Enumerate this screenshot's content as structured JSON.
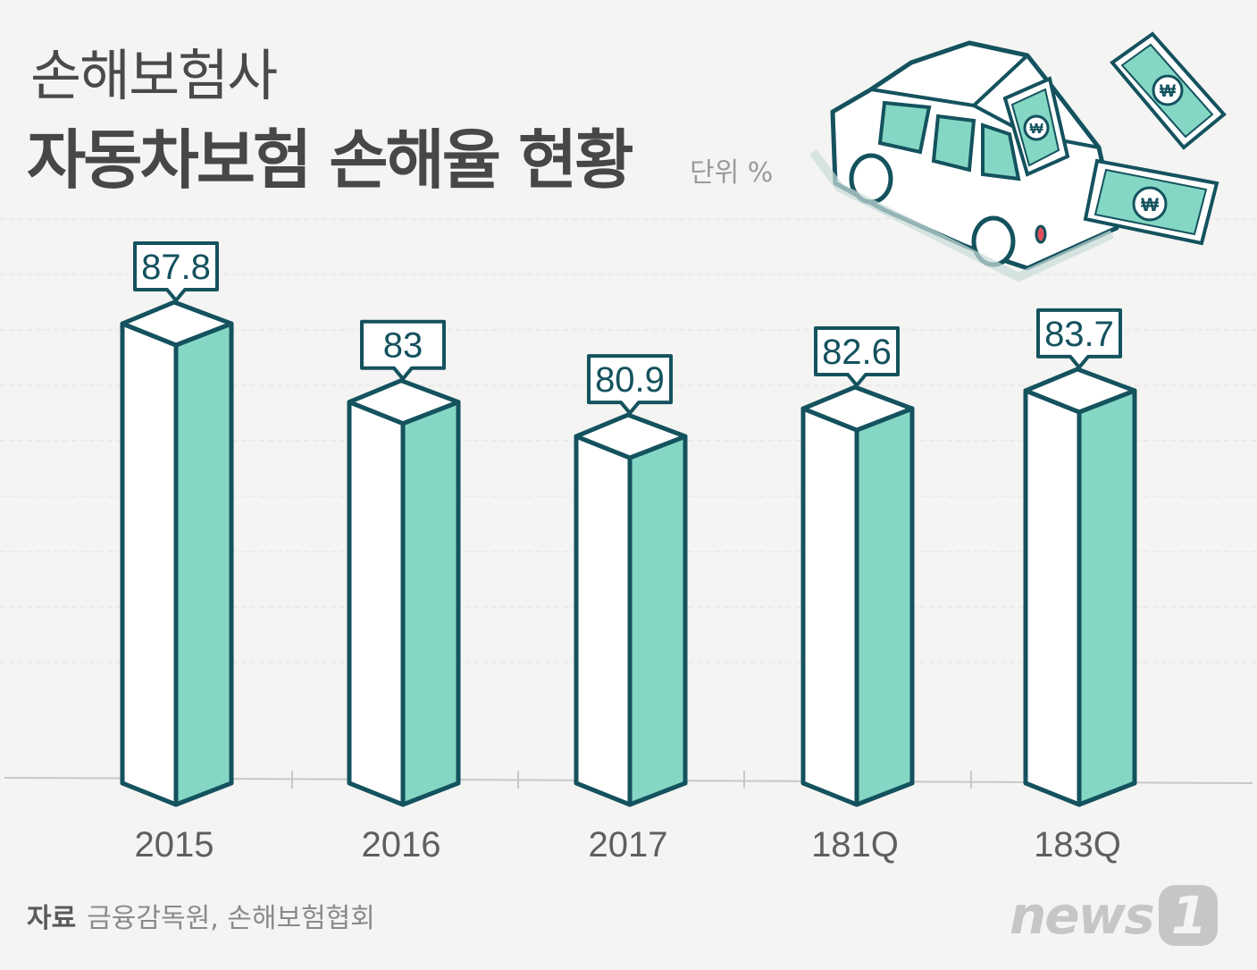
{
  "title": "손해보험사",
  "subtitle": "자동차보험 손해율 현황",
  "unit_label": "단위 %",
  "source_label": "자료",
  "source_text": "금융감독원, 손해보험협회",
  "logo_text": "news",
  "logo_badge": "1",
  "colors": {
    "accent": "#84d7c4",
    "outline": "#14525e",
    "background": "#f4f4f3",
    "front_face": "#ffffff"
  },
  "car_icon": "car-with-money-icon",
  "money_icon": "won-banknote-icon",
  "chart_data": {
    "type": "bar",
    "categories": [
      "2015",
      "2016",
      "2017",
      "181Q",
      "183Q"
    ],
    "values": [
      87.8,
      83,
      80.9,
      82.6,
      83.7
    ],
    "value_labels": [
      "87.8",
      "83",
      "80.9",
      "82.6",
      "83.7"
    ],
    "title": "자동차보험 손해율 현황",
    "ylabel": "단위 %",
    "grid": true,
    "legend": "none"
  }
}
